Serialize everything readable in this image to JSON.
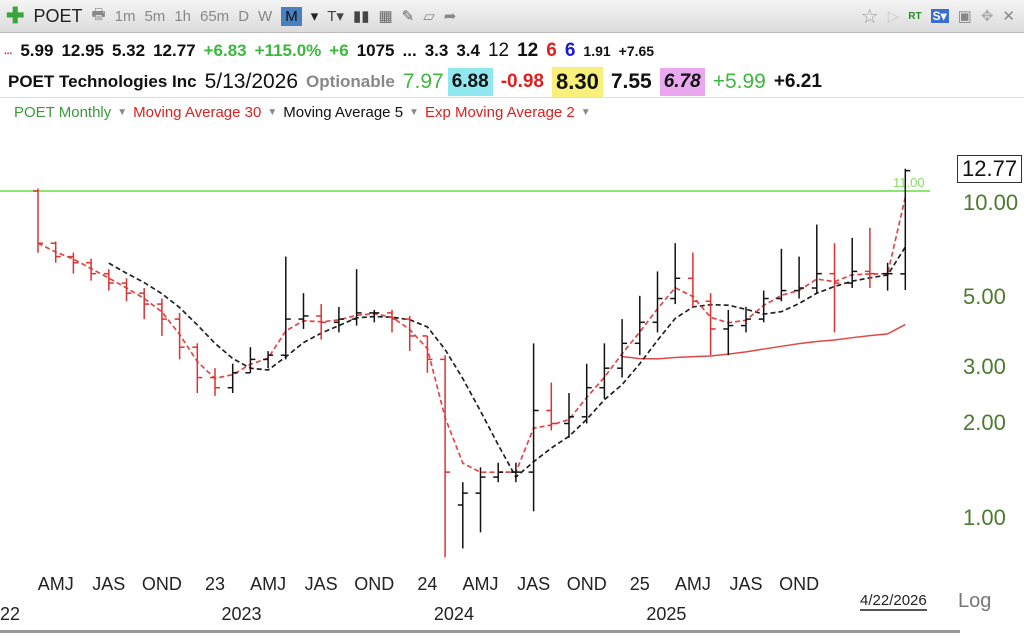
{
  "toolbar": {
    "symbol": "POET",
    "intervals": [
      "1m",
      "5m",
      "1h",
      "65m",
      "D",
      "W",
      "M"
    ],
    "active_interval": "M",
    "rt": "RT",
    "s": "S▾"
  },
  "quote_row": {
    "dots": "...",
    "open": "5.99",
    "high": "12.95",
    "low": "5.32",
    "close": "12.77",
    "change": "+6.83",
    "pct": "+115.0%",
    "v1": "+6",
    "v2": "1075",
    "ell": "...",
    "v3": "3.3",
    "v4": "3.4",
    "v5": "12",
    "v6": "12",
    "v7": "6",
    "v8": "6",
    "v9": "1.91",
    "v10": "+7.65"
  },
  "info_row": {
    "name": "POET Technologies Inc",
    "date": "5/13/2026",
    "optionable": "Optionable",
    "v1": "7.97",
    "v2": "6.88",
    "v3": "-0.98",
    "v4": "8.30",
    "v5": "7.55",
    "v6": "6.78",
    "v7": "+5.99",
    "v8": "+6.21"
  },
  "indicators": [
    "POET Monthly",
    "Moving Average 30",
    "Moving Average 5",
    "Exp Moving Average 2"
  ],
  "chart_data": {
    "type": "ohlc",
    "scale": "log",
    "price_label": "12.77",
    "hline_label": "11.00",
    "hline": 11,
    "y_ticks": [
      "10.00",
      "5.00",
      "3.00",
      "2.00",
      "1.00"
    ],
    "x_quarters": [
      "AMJ",
      "JAS",
      "OND",
      "23",
      "AMJ",
      "JAS",
      "OND",
      "24",
      "AMJ",
      "JAS",
      "OND",
      "25",
      "AMJ",
      "JAS",
      "OND"
    ],
    "x_years": [
      "22",
      "2023",
      "2024",
      "2025"
    ],
    "end_date": "4/22/2026",
    "log_label": "Log",
    "start": "2022-03",
    "ohlc": [
      [
        11,
        11.2,
        7,
        7.5
      ],
      [
        7.5,
        7.6,
        6.5,
        6.8
      ],
      [
        6.8,
        7,
        6,
        6.5
      ],
      [
        6.5,
        6.7,
        5.7,
        6
      ],
      [
        6,
        6.2,
        5.3,
        5.6
      ],
      [
        5.6,
        5.8,
        4.9,
        5.2
      ],
      [
        5.2,
        5.4,
        4.3,
        4.8
      ],
      [
        4.8,
        5,
        3.8,
        4.3
      ],
      [
        4.3,
        4.5,
        3.2,
        3.5
      ],
      [
        3.5,
        3.6,
        2.5,
        2.8
      ],
      [
        2.8,
        3,
        2.45,
        2.6
      ],
      [
        2.6,
        3.1,
        2.5,
        2.9
      ],
      [
        2.9,
        3.5,
        2.9,
        3.2
      ],
      [
        3.2,
        3.4,
        3,
        3.3
      ],
      [
        3.3,
        6.8,
        3.2,
        4.3
      ],
      [
        4.3,
        5.2,
        4,
        4.4
      ],
      [
        4.4,
        4.8,
        3.7,
        4.2
      ],
      [
        4.2,
        4.7,
        3.9,
        4.3
      ],
      [
        4.3,
        6.2,
        4.1,
        4.5
      ],
      [
        4.5,
        4.6,
        4.2,
        4.5
      ],
      [
        4.5,
        4.6,
        3.9,
        4.3
      ],
      [
        4.3,
        4.4,
        3.4,
        3.8
      ],
      [
        3.8,
        3.8,
        2.9,
        3.2
      ],
      [
        3.2,
        3.3,
        0.75,
        1.4
      ],
      [
        1.1,
        1.3,
        0.8,
        1.2
      ],
      [
        1.2,
        1.45,
        0.9,
        1.35
      ],
      [
        1.35,
        1.5,
        1.3,
        1.4
      ],
      [
        1.4,
        1.5,
        1.3,
        1.4
      ],
      [
        1.4,
        3.6,
        1.05,
        2.2
      ],
      [
        2.2,
        2.7,
        1.9,
        2.0
      ],
      [
        2.0,
        2.5,
        1.8,
        2.1
      ],
      [
        2.1,
        3.1,
        2.0,
        2.6
      ],
      [
        2.6,
        3.6,
        2.4,
        3.0
      ],
      [
        3.0,
        4.3,
        2.8,
        3.6
      ],
      [
        3.6,
        5.1,
        3.3,
        4.2
      ],
      [
        4.2,
        6.1,
        3.9,
        5.0
      ],
      [
        5.0,
        7.5,
        4.8,
        5.8
      ],
      [
        5.8,
        7,
        4.7,
        4.9
      ],
      [
        4.9,
        5.2,
        3.3,
        4.0
      ],
      [
        4.0,
        4.6,
        3.3,
        4.1
      ],
      [
        4.1,
        4.7,
        3.9,
        4.3
      ],
      [
        4.3,
        5.3,
        4.2,
        5.0
      ],
      [
        5.0,
        7.2,
        4.9,
        5.3
      ],
      [
        5.3,
        6.8,
        5.0,
        5.4
      ],
      [
        5.4,
        8.6,
        5.2,
        6.0
      ],
      [
        6.0,
        7.5,
        3.9,
        5.6
      ],
      [
        5.6,
        7.8,
        5.4,
        6.1
      ],
      [
        6.1,
        8.4,
        5.4,
        6.0
      ],
      [
        6.0,
        6.5,
        5.3,
        6.0
      ],
      [
        5.99,
        12.95,
        5.32,
        12.77
      ]
    ]
  }
}
